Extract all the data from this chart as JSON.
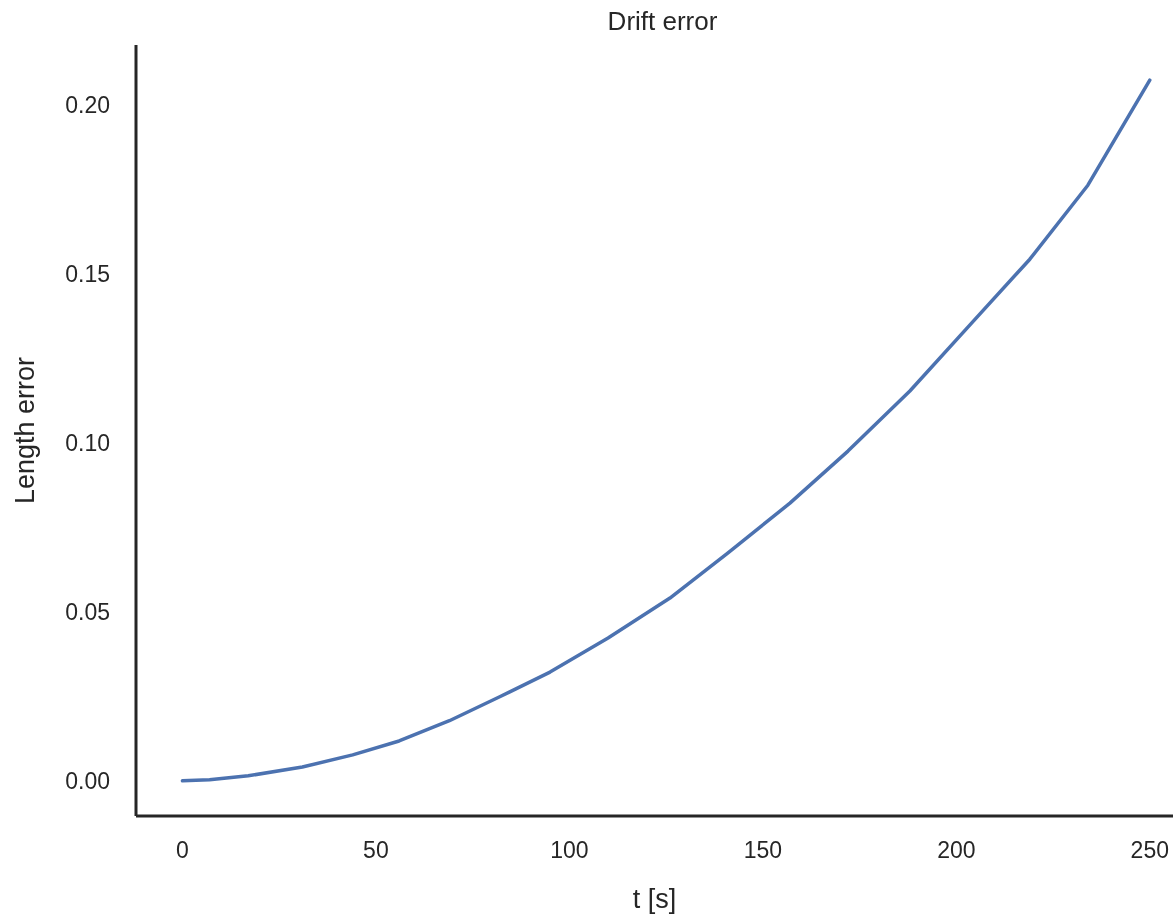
{
  "chart_data": {
    "type": "line",
    "title": "Drift error",
    "xlabel": "t [s]",
    "ylabel": "Length error",
    "xlim": [
      -12,
      256
    ],
    "ylim": [
      -0.0104,
      0.2178
    ],
    "xticks": [
      0,
      50,
      100,
      150,
      200,
      250
    ],
    "yticks": [
      {
        "value": 0,
        "label": "0.00"
      },
      {
        "value": 0.05,
        "label": "0.05"
      },
      {
        "value": 0.1,
        "label": "0.10"
      },
      {
        "value": 0.15,
        "label": "0.15"
      },
      {
        "value": 0.2,
        "label": "0.20"
      }
    ],
    "series": [
      {
        "color": "#4c72b0",
        "x": [
          0,
          7,
          17,
          31,
          44,
          56,
          69,
          82,
          95,
          110,
          126,
          141,
          157,
          172,
          188,
          203,
          219,
          234,
          250
        ],
        "values": [
          0,
          0.0003,
          0.0015,
          0.0041,
          0.0077,
          0.0118,
          0.0178,
          0.0249,
          0.0322,
          0.0423,
          0.0541,
          0.0675,
          0.0822,
          0.0976,
          0.1154,
          0.1343,
          0.1544,
          0.1763,
          0.2074
        ]
      }
    ]
  }
}
